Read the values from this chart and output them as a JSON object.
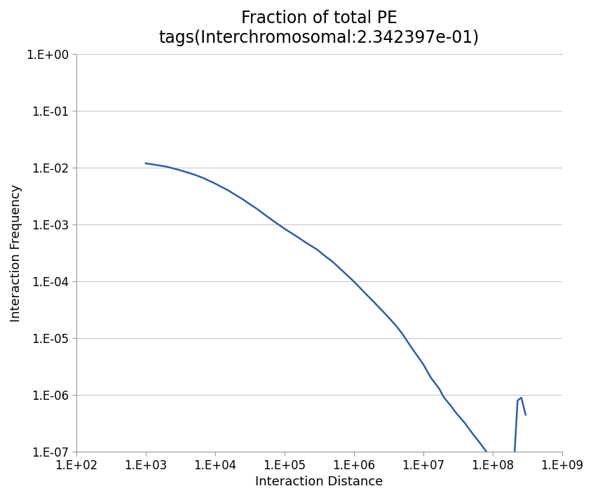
{
  "title_line1": "Fraction of total PE",
  "title_line2": "tags(Interchromosomal:2.342397e-01)",
  "xlabel": "Interaction Distance",
  "ylabel": "Interaction Frequency",
  "line_color": "#2E5FA3",
  "line_width": 1.8,
  "xlim": [
    100.0,
    1000000000.0
  ],
  "ylim": [
    1e-07,
    1.0
  ],
  "x_ticks": [
    100.0,
    1000.0,
    10000.0,
    100000.0,
    1000000.0,
    10000000.0,
    100000000.0,
    1000000000.0
  ],
  "y_ticks": [
    1e-07,
    1e-06,
    1e-05,
    0.0001,
    0.001,
    0.01,
    0.1,
    1.0
  ],
  "x_ticklabels": [
    "1.E+02",
    "1.E+03",
    "1.E+04",
    "1.E+05",
    "1.E+06",
    "1.E+07",
    "1.E+08",
    "1.E+09"
  ],
  "y_ticklabels": [
    "1.E-07",
    "1.E-06",
    "1.E-05",
    "1.E-04",
    "1.E-03",
    "1.E-02",
    "1.E-01",
    "1.E+00"
  ],
  "x_data": [
    1000,
    2000,
    3000,
    4000,
    5000,
    6000,
    7000,
    8000,
    10000,
    12000,
    15000,
    20000,
    25000,
    30000,
    40000,
    50000,
    70000,
    100000,
    150000,
    200000,
    300000,
    400000,
    500000,
    700000,
    1000000,
    1500000,
    2000000,
    3000000,
    4000000,
    5000000,
    7000000,
    10000000,
    13000000,
    17000000,
    20000000,
    25000000,
    30000000,
    40000000,
    50000000,
    70000000,
    90000000,
    110000000,
    130000000,
    150000000,
    170000000,
    200000000,
    230000000,
    260000000,
    300000000
  ],
  "y_data": [
    0.012,
    0.0105,
    0.0092,
    0.0083,
    0.0076,
    0.007,
    0.0065,
    0.006,
    0.0053,
    0.0047,
    0.0041,
    0.0033,
    0.0028,
    0.0024,
    0.0019,
    0.00155,
    0.00115,
    0.00085,
    0.00062,
    0.00049,
    0.00036,
    0.00027,
    0.00022,
    0.00015,
    0.0001,
    6e-05,
    4.2e-05,
    2.5e-05,
    1.7e-05,
    1.2e-05,
    6.5e-06,
    3.5e-06,
    2e-06,
    1.3e-06,
    9e-07,
    6.5e-07,
    4.8e-07,
    3.2e-07,
    2.2e-07,
    1.3e-07,
    8.5e-08,
    6.5e-08,
    5e-08,
    4.5e-08,
    4.2e-08,
    4e-08,
    8e-07,
    9e-07,
    4.5e-07
  ],
  "background_color": "#ffffff",
  "grid_color": "#c8c8c8",
  "title_fontsize": 17,
  "label_fontsize": 13,
  "tick_fontsize": 12
}
